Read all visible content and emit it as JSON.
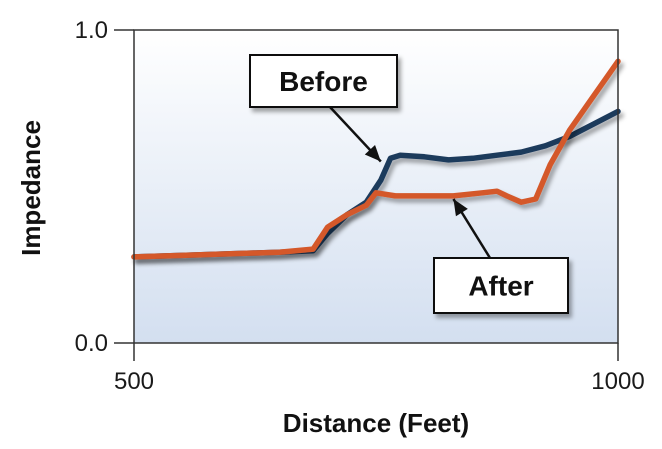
{
  "chart_data": {
    "type": "line",
    "xlabel": "Distance (Feet)",
    "ylabel": "Impedance",
    "xlim": [
      500,
      1000
    ],
    "ylim": [
      0.0,
      1.0
    ],
    "x_ticks": [
      {
        "value": 500,
        "label": "500"
      },
      {
        "value": 1000,
        "label": "1000"
      }
    ],
    "y_ticks": [
      {
        "value": 0.0,
        "label": "0.0"
      },
      {
        "value": 1.0,
        "label": "1.0"
      }
    ],
    "grid": false,
    "series": [
      {
        "name": "Before",
        "color": "#1f3a5c",
        "points": [
          [
            500,
            0.275
          ],
          [
            550,
            0.28
          ],
          [
            600,
            0.285
          ],
          [
            650,
            0.29
          ],
          [
            685,
            0.295
          ],
          [
            700,
            0.35
          ],
          [
            720,
            0.41
          ],
          [
            740,
            0.45
          ],
          [
            755,
            0.52
          ],
          [
            765,
            0.59
          ],
          [
            775,
            0.6
          ],
          [
            800,
            0.595
          ],
          [
            825,
            0.585
          ],
          [
            850,
            0.59
          ],
          [
            875,
            0.6
          ],
          [
            900,
            0.61
          ],
          [
            925,
            0.63
          ],
          [
            950,
            0.66
          ],
          [
            975,
            0.7
          ],
          [
            1000,
            0.74
          ]
        ]
      },
      {
        "name": "After",
        "color": "#d4582a",
        "points": [
          [
            500,
            0.275
          ],
          [
            550,
            0.28
          ],
          [
            600,
            0.285
          ],
          [
            650,
            0.29
          ],
          [
            685,
            0.3
          ],
          [
            700,
            0.37
          ],
          [
            720,
            0.41
          ],
          [
            740,
            0.44
          ],
          [
            750,
            0.48
          ],
          [
            770,
            0.47
          ],
          [
            800,
            0.47
          ],
          [
            830,
            0.47
          ],
          [
            860,
            0.48
          ],
          [
            875,
            0.485
          ],
          [
            885,
            0.47
          ],
          [
            900,
            0.45
          ],
          [
            915,
            0.46
          ],
          [
            930,
            0.57
          ],
          [
            950,
            0.68
          ],
          [
            975,
            0.79
          ],
          [
            1000,
            0.9
          ]
        ]
      }
    ],
    "annotations": [
      {
        "text": "Before",
        "target": [
          755,
          0.58
        ]
      },
      {
        "text": "After",
        "target": [
          830,
          0.46
        ]
      }
    ]
  }
}
